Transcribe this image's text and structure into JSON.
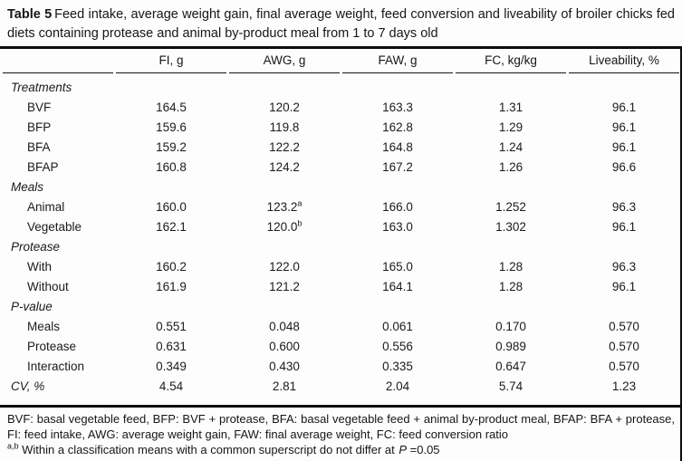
{
  "title": {
    "label": "Table 5",
    "text": "Feed intake, average weight gain, final average weight, feed conversion and liveability of broiler chicks fed diets containing protease and animal by-product meal from 1 to 7 days old"
  },
  "table": {
    "columns": [
      "FI, g",
      "AWG, g",
      "FAW, g",
      "FC, kg/kg",
      "Liveability, %"
    ],
    "rows": [
      {
        "type": "section",
        "label": "Treatments"
      },
      {
        "type": "data",
        "label": "BVF",
        "values": [
          "164.5",
          "120.2",
          "163.3",
          "1.31",
          "96.1"
        ]
      },
      {
        "type": "data",
        "label": "BFP",
        "values": [
          "159.6",
          "119.8",
          "162.8",
          "1.29",
          "96.1"
        ]
      },
      {
        "type": "data",
        "label": "BFA",
        "values": [
          "159.2",
          "122.2",
          "164.8",
          "1.24",
          "96.1"
        ]
      },
      {
        "type": "data",
        "label": "BFAP",
        "values": [
          "160.8",
          "124.2",
          "167.2",
          "1.26",
          "96.6"
        ]
      },
      {
        "type": "section",
        "label": "Meals"
      },
      {
        "type": "data",
        "label": "Animal",
        "values": [
          "160.0",
          "123.2",
          "166.0",
          "1.252",
          "96.3"
        ],
        "superscripts": {
          "1": "a"
        }
      },
      {
        "type": "data",
        "label": "Vegetable",
        "values": [
          "162.1",
          "120.0",
          "163.0",
          "1.302",
          "96.1"
        ],
        "superscripts": {
          "1": "b"
        }
      },
      {
        "type": "section",
        "label": "Protease"
      },
      {
        "type": "data",
        "label": "With",
        "values": [
          "160.2",
          "122.0",
          "165.0",
          "1.28",
          "96.3"
        ]
      },
      {
        "type": "data",
        "label": "Without",
        "values": [
          "161.9",
          "121.2",
          "164.1",
          "1.28",
          "96.1"
        ]
      },
      {
        "type": "section",
        "label": "P-value"
      },
      {
        "type": "data",
        "label": "Meals",
        "values": [
          "0.551",
          "0.048",
          "0.061",
          "0.170",
          "0.570"
        ]
      },
      {
        "type": "data",
        "label": "Protease",
        "values": [
          "0.631",
          "0.600",
          "0.556",
          "0.989",
          "0.570"
        ]
      },
      {
        "type": "data",
        "label": "Interaction",
        "values": [
          "0.349",
          "0.430",
          "0.335",
          "0.647",
          "0.570"
        ]
      },
      {
        "type": "summary",
        "label": "CV, %",
        "values": [
          "4.54",
          "2.81",
          "2.04",
          "5.74",
          "1.23"
        ]
      }
    ]
  },
  "footnotes": {
    "abbreviations": "BVF: basal vegetable feed, BFP: BVF + protease, BFA: basal vegetable feed + animal by-product meal, BFAP: BFA + protease, FI: feed intake, AWG: average weight gain, FAW: final average weight, FC: feed conversion ratio",
    "superscript_note": {
      "sup": "a,b",
      "before_p": " Within a classification means with a common superscript do not differ at ",
      "p": "P",
      "after_p": " =0.05"
    }
  }
}
